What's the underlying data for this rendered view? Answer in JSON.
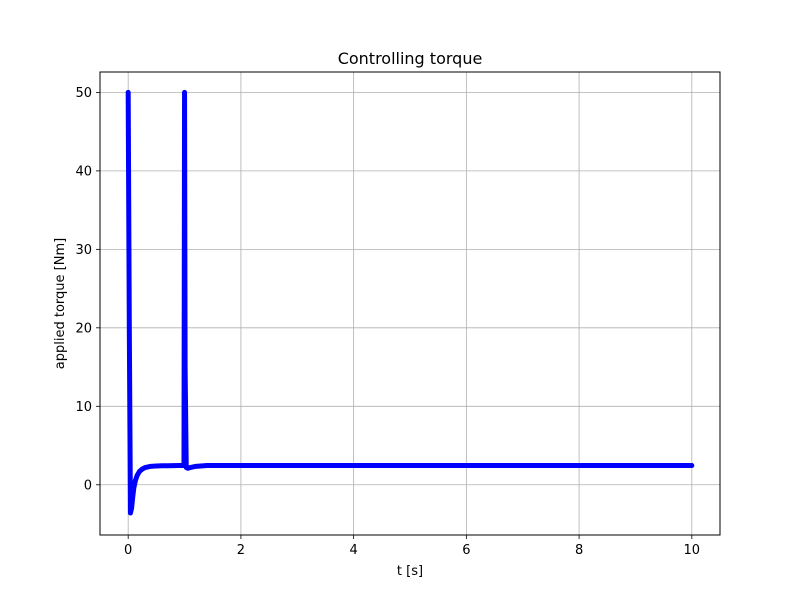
{
  "chart_data": {
    "type": "line",
    "title": "Controlling torque",
    "xlabel": "t [s]",
    "ylabel": "applied torque [Nm]",
    "xlim": [
      -0.5,
      10.5
    ],
    "ylim": [
      -6.4,
      52.6
    ],
    "xticks": [
      0,
      2,
      4,
      6,
      8,
      10
    ],
    "yticks": [
      0,
      10,
      20,
      30,
      40,
      50
    ],
    "grid": true,
    "series": [
      {
        "color": "#0000ff",
        "x": [
          0.0,
          0.02,
          0.04,
          0.06,
          0.08,
          0.1,
          0.13,
          0.16,
          0.2,
          0.25,
          0.3,
          0.4,
          0.5,
          0.6,
          0.7,
          0.8,
          0.9,
          0.99,
          1.0,
          1.01,
          1.03,
          1.06,
          1.1,
          1.2,
          1.4,
          1.7,
          2.0,
          3.0,
          4.0,
          5.0,
          6.0,
          7.0,
          8.0,
          9.0,
          10.0
        ],
        "values": [
          50.0,
          20.0,
          -3.6,
          -3.0,
          -1.6,
          -0.4,
          0.6,
          1.2,
          1.7,
          2.0,
          2.2,
          2.35,
          2.4,
          2.42,
          2.43,
          2.44,
          2.45,
          2.45,
          50.0,
          15.0,
          2.2,
          2.1,
          2.2,
          2.35,
          2.45,
          2.45,
          2.45,
          2.45,
          2.45,
          2.45,
          2.45,
          2.45,
          2.45,
          2.45,
          2.45
        ]
      }
    ]
  }
}
